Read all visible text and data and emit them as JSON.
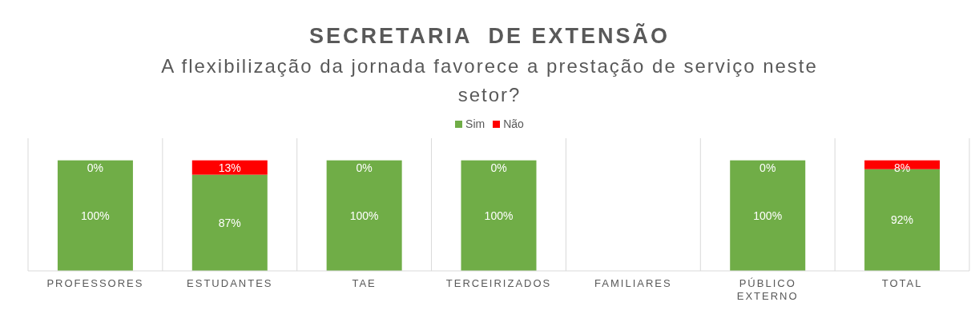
{
  "chart_data": {
    "type": "bar",
    "title": "SECRETARIA  DE EXTENSÃO",
    "subtitle": "A flexibilização da jornada favorece a prestação de serviço neste setor?",
    "categories": [
      "PROFESSORES",
      "ESTUDANTES",
      "TAE",
      "TERCEIRIZADOS",
      "FAMILIARES",
      "PÚBLICO EXTERNO",
      "TOTAL"
    ],
    "stacked": true,
    "legend": "top",
    "grid": "x",
    "series": [
      {
        "name": "Sim",
        "color": "#70ad47",
        "values": [
          100,
          87,
          100,
          100,
          null,
          100,
          92
        ],
        "value_labels": [
          "100%",
          "87%",
          "100%",
          "100%",
          null,
          "100%",
          "92%"
        ]
      },
      {
        "name": "Não",
        "color": "#ff0000",
        "values": [
          0,
          13,
          0,
          0,
          null,
          0,
          8
        ],
        "value_labels": [
          "0%",
          "13%",
          "0%",
          "0%",
          null,
          "0%",
          "8%"
        ]
      }
    ]
  }
}
